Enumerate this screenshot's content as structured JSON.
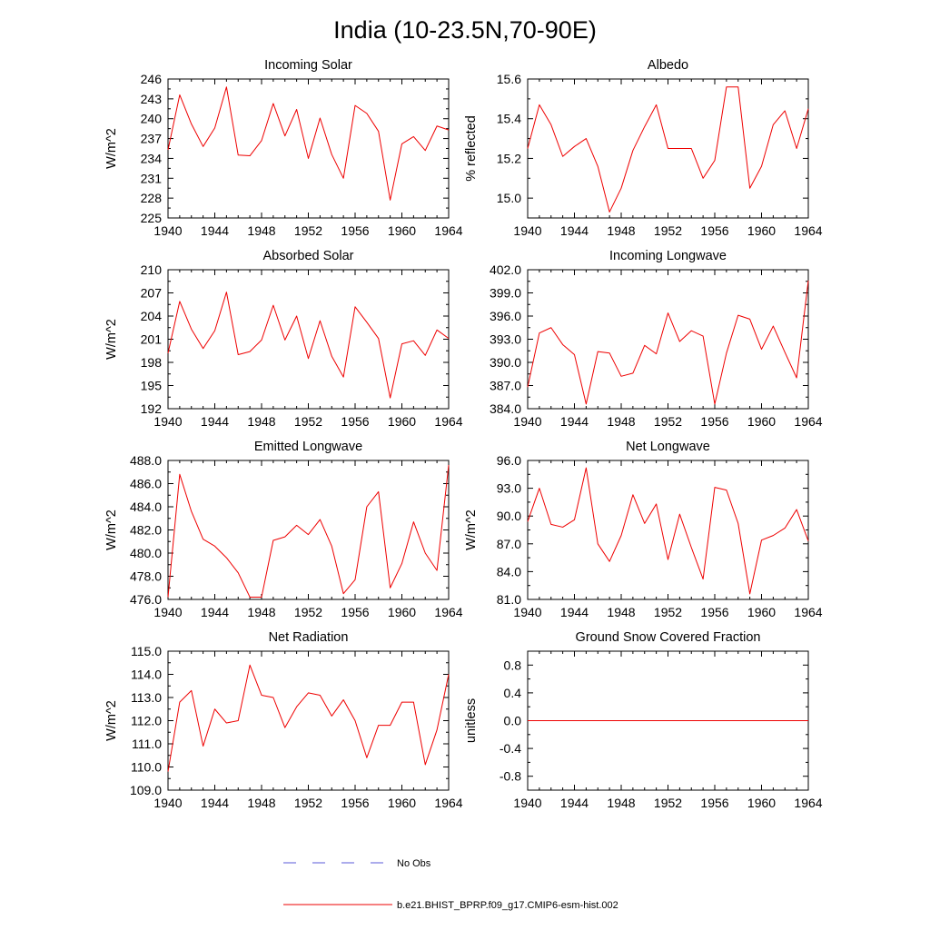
{
  "title": "India (10-23.5N,70-90E)",
  "legend": {
    "obs_label": "No Obs",
    "model_label": "b.e21.BHIST_BPRP.f09_g17.CMIP6-esm-hist.002",
    "obs_color": "#5a5ad8",
    "model_color": "#ee0000"
  },
  "chart_data": [
    {
      "type": "line",
      "title": "Incoming Solar",
      "ylabel": "W/m^2",
      "xlim": [
        1940,
        1964
      ],
      "ylim": [
        225,
        246
      ],
      "xticks": [
        1940,
        1944,
        1948,
        1952,
        1956,
        1960,
        1964
      ],
      "yticks": [
        "225",
        "228",
        "231",
        "234",
        "237",
        "240",
        "243",
        "246"
      ],
      "series": [
        {
          "x": [
            1940,
            1941,
            1942,
            1943,
            1944,
            1945,
            1946,
            1947,
            1948,
            1949,
            1950,
            1951,
            1952,
            1953,
            1954,
            1955,
            1956,
            1957,
            1958,
            1959,
            1960,
            1961,
            1962,
            1963,
            1964
          ],
          "y": [
            235.3,
            243.6,
            239.2,
            235.8,
            238.6,
            244.8,
            234.5,
            234.4,
            236.7,
            242.3,
            237.4,
            241.4,
            234.0,
            240.1,
            234.6,
            231.0,
            242.0,
            240.8,
            238.1,
            227.7,
            236.2,
            237.3,
            235.2,
            238.9,
            238.3
          ]
        }
      ]
    },
    {
      "type": "line",
      "title": "Albedo",
      "ylabel": "% reflected",
      "xlim": [
        1940,
        1964
      ],
      "ylim": [
        14.9,
        15.6
      ],
      "xticks": [
        1940,
        1944,
        1948,
        1952,
        1956,
        1960,
        1964
      ],
      "yticks": [
        "15.0",
        "15.2",
        "15.4",
        "15.6"
      ],
      "series": [
        {
          "x": [
            1940,
            1941,
            1942,
            1943,
            1944,
            1945,
            1946,
            1947,
            1948,
            1949,
            1950,
            1951,
            1952,
            1953,
            1954,
            1955,
            1956,
            1957,
            1958,
            1959,
            1960,
            1961,
            1962,
            1963,
            1964
          ],
          "y": [
            15.25,
            15.47,
            15.37,
            15.21,
            15.26,
            15.3,
            15.16,
            14.93,
            15.05,
            15.24,
            15.36,
            15.47,
            15.25,
            15.25,
            15.25,
            15.1,
            15.19,
            15.56,
            15.56,
            15.05,
            15.16,
            15.37,
            15.44,
            15.25,
            15.45
          ]
        }
      ]
    },
    {
      "type": "line",
      "title": "Absorbed Solar",
      "ylabel": "W/m^2",
      "xlim": [
        1940,
        1964
      ],
      "ylim": [
        192,
        210
      ],
      "xticks": [
        1940,
        1944,
        1948,
        1952,
        1956,
        1960,
        1964
      ],
      "yticks": [
        "192",
        "195",
        "198",
        "201",
        "204",
        "207",
        "210"
      ],
      "series": [
        {
          "x": [
            1940,
            1941,
            1942,
            1943,
            1944,
            1945,
            1946,
            1947,
            1948,
            1949,
            1950,
            1951,
            1952,
            1953,
            1954,
            1955,
            1956,
            1957,
            1958,
            1959,
            1960,
            1961,
            1962,
            1963,
            1964
          ],
          "y": [
            199.2,
            205.9,
            202.3,
            199.8,
            202.1,
            207.1,
            199.0,
            199.4,
            200.9,
            205.4,
            200.9,
            204.0,
            198.5,
            203.4,
            198.8,
            196.1,
            205.2,
            203.2,
            201.1,
            193.4,
            200.4,
            200.8,
            198.9,
            202.2,
            201.1
          ]
        }
      ]
    },
    {
      "type": "line",
      "title": "Incoming Longwave",
      "ylabel": "",
      "xlim": [
        1940,
        1964
      ],
      "ylim": [
        384,
        402
      ],
      "xticks": [
        1940,
        1944,
        1948,
        1952,
        1956,
        1960,
        1964
      ],
      "yticks": [
        "384.0",
        "387.0",
        "390.0",
        "393.0",
        "396.0",
        "399.0",
        "402.0"
      ],
      "series": [
        {
          "x": [
            1940,
            1941,
            1942,
            1943,
            1944,
            1945,
            1946,
            1947,
            1948,
            1949,
            1950,
            1951,
            1952,
            1953,
            1954,
            1955,
            1956,
            1957,
            1958,
            1959,
            1960,
            1961,
            1962,
            1963,
            1964
          ],
          "y": [
            386.8,
            393.8,
            394.5,
            392.3,
            391.0,
            384.6,
            391.4,
            391.2,
            388.2,
            388.6,
            392.2,
            391.1,
            396.4,
            392.7,
            394.1,
            393.4,
            384.6,
            391.2,
            396.1,
            395.6,
            391.7,
            394.7,
            391.3,
            388.0,
            400.6
          ]
        }
      ]
    },
    {
      "type": "line",
      "title": "Emitted Longwave",
      "ylabel": "W/m^2",
      "xlim": [
        1940,
        1964
      ],
      "ylim": [
        476,
        488
      ],
      "xticks": [
        1940,
        1944,
        1948,
        1952,
        1956,
        1960,
        1964
      ],
      "yticks": [
        "476.0",
        "478.0",
        "480.0",
        "482.0",
        "484.0",
        "486.0",
        "488.0"
      ],
      "series": [
        {
          "x": [
            1940,
            1941,
            1942,
            1943,
            1944,
            1945,
            1946,
            1947,
            1948,
            1949,
            1950,
            1951,
            1952,
            1953,
            1954,
            1955,
            1956,
            1957,
            1958,
            1959,
            1960,
            1961,
            1962,
            1963,
            1964
          ],
          "y": [
            476.2,
            486.8,
            483.6,
            481.2,
            480.6,
            479.6,
            478.3,
            476.2,
            476.2,
            481.1,
            481.4,
            482.4,
            481.6,
            482.9,
            480.6,
            476.5,
            477.7,
            484.0,
            485.3,
            477.0,
            479.1,
            482.7,
            480.0,
            478.5,
            487.6
          ]
        }
      ]
    },
    {
      "type": "line",
      "title": "Net Longwave",
      "ylabel": "W/m^2",
      "xlim": [
        1940,
        1964
      ],
      "ylim": [
        81,
        96
      ],
      "xticks": [
        1940,
        1944,
        1948,
        1952,
        1956,
        1960,
        1964
      ],
      "yticks": [
        "81.0",
        "84.0",
        "87.0",
        "90.0",
        "93.0",
        "96.0"
      ],
      "series": [
        {
          "x": [
            1940,
            1941,
            1942,
            1943,
            1944,
            1945,
            1946,
            1947,
            1948,
            1949,
            1950,
            1951,
            1952,
            1953,
            1954,
            1955,
            1956,
            1957,
            1958,
            1959,
            1960,
            1961,
            1962,
            1963,
            1964
          ],
          "y": [
            89.4,
            93.0,
            89.1,
            88.8,
            89.6,
            95.2,
            87.0,
            85.1,
            87.9,
            92.3,
            89.2,
            91.3,
            85.3,
            90.2,
            86.6,
            83.2,
            93.1,
            92.8,
            89.2,
            81.6,
            87.4,
            87.9,
            88.7,
            90.7,
            87.3
          ]
        }
      ]
    },
    {
      "type": "line",
      "title": "Net Radiation",
      "ylabel": "W/m^2",
      "xlim": [
        1940,
        1964
      ],
      "ylim": [
        109,
        115
      ],
      "xticks": [
        1940,
        1944,
        1948,
        1952,
        1956,
        1960,
        1964
      ],
      "yticks": [
        "109.0",
        "110.0",
        "111.0",
        "112.0",
        "113.0",
        "114.0",
        "115.0"
      ],
      "series": [
        {
          "x": [
            1940,
            1941,
            1942,
            1943,
            1944,
            1945,
            1946,
            1947,
            1948,
            1949,
            1950,
            1951,
            1952,
            1953,
            1954,
            1955,
            1956,
            1957,
            1958,
            1959,
            1960,
            1961,
            1962,
            1963,
            1964
          ],
          "y": [
            109.8,
            112.8,
            113.3,
            110.9,
            112.5,
            111.9,
            112.0,
            114.4,
            113.1,
            113.0,
            111.7,
            112.6,
            113.2,
            113.1,
            112.2,
            112.9,
            112.0,
            110.4,
            111.8,
            111.8,
            112.8,
            112.8,
            110.1,
            111.6,
            114.0
          ]
        }
      ]
    },
    {
      "type": "line",
      "title": "Ground Snow Covered Fraction",
      "ylabel": "unitless",
      "xlim": [
        1940,
        1964
      ],
      "ylim": [
        -1.0,
        1.0
      ],
      "xticks": [
        1940,
        1944,
        1948,
        1952,
        1956,
        1960,
        1964
      ],
      "yticks": [
        "-0.8",
        "-0.4",
        "0.0",
        "0.4",
        "0.8"
      ],
      "series": [
        {
          "x": [
            1940,
            1964
          ],
          "y": [
            0.0,
            0.0
          ]
        }
      ]
    }
  ]
}
